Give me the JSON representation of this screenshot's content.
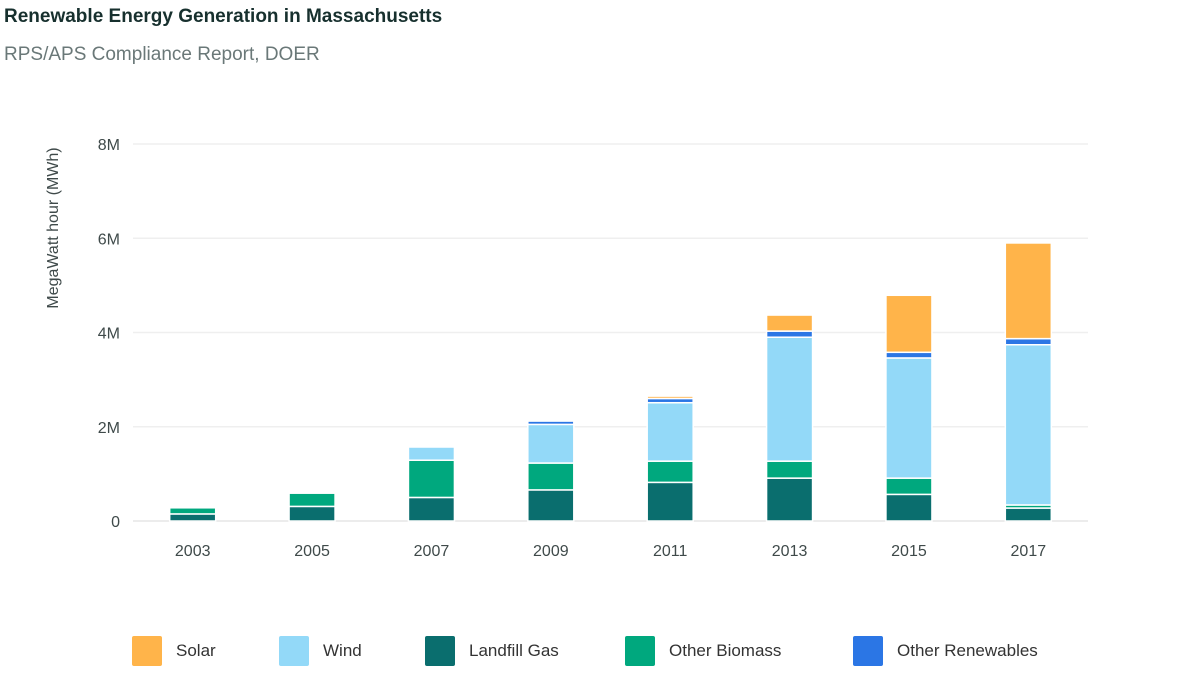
{
  "title": "Renewable Energy Generation in Massachusetts",
  "subtitle": "RPS/APS Compliance Report, DOER",
  "chart_data": {
    "type": "bar",
    "stacked": true,
    "ylabel": "MegaWatt hour (MWh)",
    "ylim": [
      0,
      8000000
    ],
    "yticks": [
      {
        "v": 0,
        "label": "0"
      },
      {
        "v": 2000000,
        "label": "2M"
      },
      {
        "v": 4000000,
        "label": "4M"
      },
      {
        "v": 6000000,
        "label": "6M"
      },
      {
        "v": 8000000,
        "label": "8M"
      }
    ],
    "grid": true,
    "legend_position": "bottom",
    "categories": [
      "2003",
      "2005",
      "2007",
      "2009",
      "2011",
      "2013",
      "2015",
      "2017"
    ],
    "series": [
      {
        "name": "Landfill Gas",
        "color": "#0A6E6E",
        "values": [
          150000,
          310000,
          500000,
          660000,
          820000,
          910000,
          565000,
          275000
        ]
      },
      {
        "name": "Other Biomass",
        "color": "#00A87E",
        "values": [
          130000,
          280000,
          790000,
          570000,
          450000,
          360000,
          345000,
          65000
        ]
      },
      {
        "name": "Wind",
        "color": "#93D9F8",
        "values": [
          0,
          0,
          280000,
          820000,
          1240000,
          2630000,
          2550000,
          3400000
        ]
      },
      {
        "name": "Other Renewables",
        "color": "#2B76E5",
        "values": [
          0,
          0,
          0,
          70000,
          90000,
          130000,
          120000,
          130000
        ]
      },
      {
        "name": "Solar",
        "color": "#FFB44A",
        "values": [
          0,
          0,
          0,
          0,
          50000,
          340000,
          1210000,
          2030000
        ]
      }
    ],
    "legend_order": [
      "Solar",
      "Wind",
      "Landfill Gas",
      "Other Biomass",
      "Other Renewables"
    ]
  }
}
